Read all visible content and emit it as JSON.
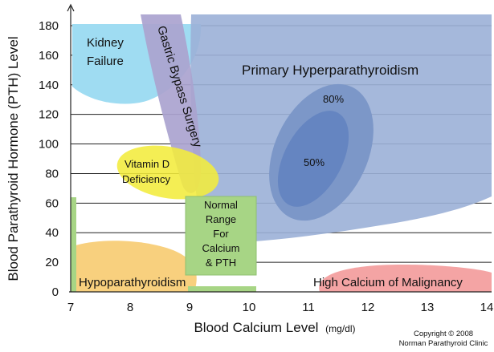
{
  "chart_data": {
    "type": "scatter",
    "title": "",
    "xlabel": "Blood Calcium Level",
    "xlabel_units": "(mg/dl)",
    "ylabel": "Blood Parathyroid Hormone  (PTH) Level",
    "xlim": [
      7,
      14
    ],
    "ylim": [
      0,
      180
    ],
    "xticks": [
      7,
      8,
      9,
      10,
      11,
      12,
      13,
      14
    ],
    "yticks": [
      0,
      20,
      40,
      60,
      80,
      100,
      120,
      140,
      160,
      180
    ],
    "grid": "horizontal",
    "regions": [
      {
        "name": "Kidney Failure",
        "label_lines": [
          "Kidney",
          "Failure"
        ],
        "color": "#9fdcf2",
        "x_range": [
          7.0,
          9.2
        ],
        "y_range": [
          125,
          180
        ]
      },
      {
        "name": "Gastric Bypass Surgery",
        "label_lines": [
          "Gastric Bypass Surgery"
        ],
        "color": "#aaa3cf",
        "x_range": [
          8.2,
          9.2
        ],
        "y_range": [
          65,
          180
        ]
      },
      {
        "name": "Vitamin D Deficiency",
        "label_lines": [
          "Vitamin D",
          "Deficiency"
        ],
        "color": "#f2ec3c",
        "x_range": [
          7.8,
          9.5
        ],
        "y_range": [
          63,
          100
        ]
      },
      {
        "name": "Primary Hyperparathyroidism",
        "label_lines": [
          "Primary Hyperparathyroidism"
        ],
        "color": "#96acd4",
        "x_range": [
          9.1,
          14
        ],
        "y_range": [
          45,
          180
        ]
      },
      {
        "name": "80%",
        "label_lines": [
          "80%"
        ],
        "color": "#7a95c6",
        "x_range": [
          10.3,
          12.2
        ],
        "y_range": [
          50,
          130
        ]
      },
      {
        "name": "50%",
        "label_lines": [
          "50%"
        ],
        "color": "#6484c0",
        "x_range": [
          10.8,
          11.6
        ],
        "y_range": [
          63,
          122
        ]
      },
      {
        "name": "Normal Range For Calcium & PTH",
        "label_lines": [
          "Normal",
          "Range",
          "For",
          "Calcium",
          "& PTH"
        ],
        "color": "#a7d585",
        "x_range": [
          9.0,
          10.1
        ],
        "y_range": [
          12,
          64
        ]
      },
      {
        "name": "Hypoparathyroidism",
        "label_lines": [
          "Hypoparathyroidism"
        ],
        "color": "#f8d07e",
        "x_range": [
          7.0,
          9.2
        ],
        "y_range": [
          0,
          34
        ]
      },
      {
        "name": "High Calcium of Malignancy",
        "label_lines": [
          "High Calcium of Malignancy"
        ],
        "color": "#f4a4a4",
        "x_range": [
          10.6,
          14
        ],
        "y_range": [
          0,
          17
        ]
      }
    ]
  },
  "copyright": [
    "Copyright © 2008",
    "Norman Parathyroid Clinic"
  ]
}
